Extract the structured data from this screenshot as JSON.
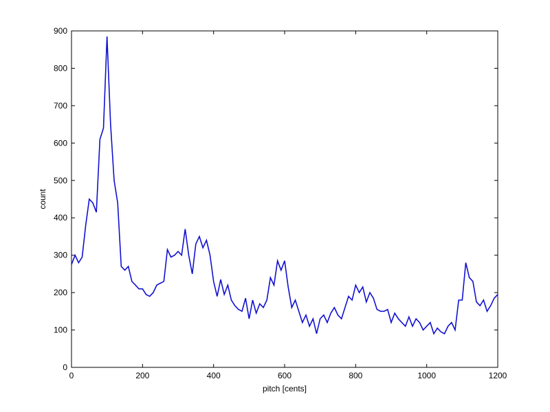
{
  "chart_data": {
    "type": "line",
    "xlabel": "pitch [cents]",
    "ylabel": "count",
    "x": [
      0,
      10,
      20,
      30,
      40,
      50,
      60,
      70,
      80,
      90,
      100,
      110,
      120,
      130,
      140,
      150,
      160,
      170,
      180,
      190,
      200,
      210,
      220,
      230,
      240,
      250,
      260,
      270,
      280,
      290,
      300,
      310,
      320,
      330,
      340,
      350,
      360,
      370,
      380,
      390,
      400,
      410,
      420,
      430,
      440,
      450,
      460,
      470,
      480,
      490,
      500,
      510,
      520,
      530,
      540,
      550,
      560,
      570,
      580,
      590,
      600,
      610,
      620,
      630,
      640,
      650,
      660,
      670,
      680,
      690,
      700,
      710,
      720,
      730,
      740,
      750,
      760,
      770,
      780,
      790,
      800,
      810,
      820,
      830,
      840,
      850,
      860,
      870,
      880,
      890,
      900,
      910,
      920,
      930,
      940,
      950,
      960,
      970,
      980,
      990,
      1000,
      1010,
      1020,
      1030,
      1040,
      1050,
      1060,
      1070,
      1080,
      1090,
      1100,
      1110,
      1120,
      1130,
      1140,
      1150,
      1160,
      1170,
      1180,
      1190,
      1200
    ],
    "series": [
      {
        "name": "count",
        "color": "#1010d0",
        "values": [
          275,
          300,
          280,
          295,
          380,
          450,
          440,
          415,
          610,
          640,
          885,
          650,
          500,
          440,
          270,
          260,
          270,
          230,
          220,
          210,
          210,
          195,
          190,
          200,
          220,
          225,
          230,
          315,
          295,
          300,
          310,
          300,
          370,
          300,
          250,
          330,
          350,
          320,
          340,
          300,
          230,
          190,
          235,
          195,
          220,
          180,
          165,
          155,
          150,
          185,
          130,
          180,
          145,
          170,
          160,
          180,
          240,
          220,
          285,
          260,
          285,
          215,
          160,
          180,
          150,
          120,
          140,
          110,
          130,
          90,
          130,
          140,
          120,
          145,
          160,
          140,
          130,
          160,
          190,
          180,
          220,
          200,
          215,
          175,
          200,
          185,
          155,
          150,
          150,
          155,
          120,
          145,
          130,
          120,
          110,
          135,
          110,
          130,
          120,
          100,
          110,
          120,
          90,
          105,
          95,
          90,
          110,
          120,
          100,
          180,
          180,
          280,
          240,
          230,
          175,
          165,
          180,
          150,
          165,
          185,
          195
        ]
      }
    ],
    "xlim": [
      0,
      1200
    ],
    "xticks": [
      0,
      200,
      400,
      600,
      800,
      1000,
      1200
    ],
    "ylim": [
      0,
      900
    ],
    "yticks": [
      0,
      100,
      200,
      300,
      400,
      500,
      600,
      700,
      800,
      900
    ]
  }
}
